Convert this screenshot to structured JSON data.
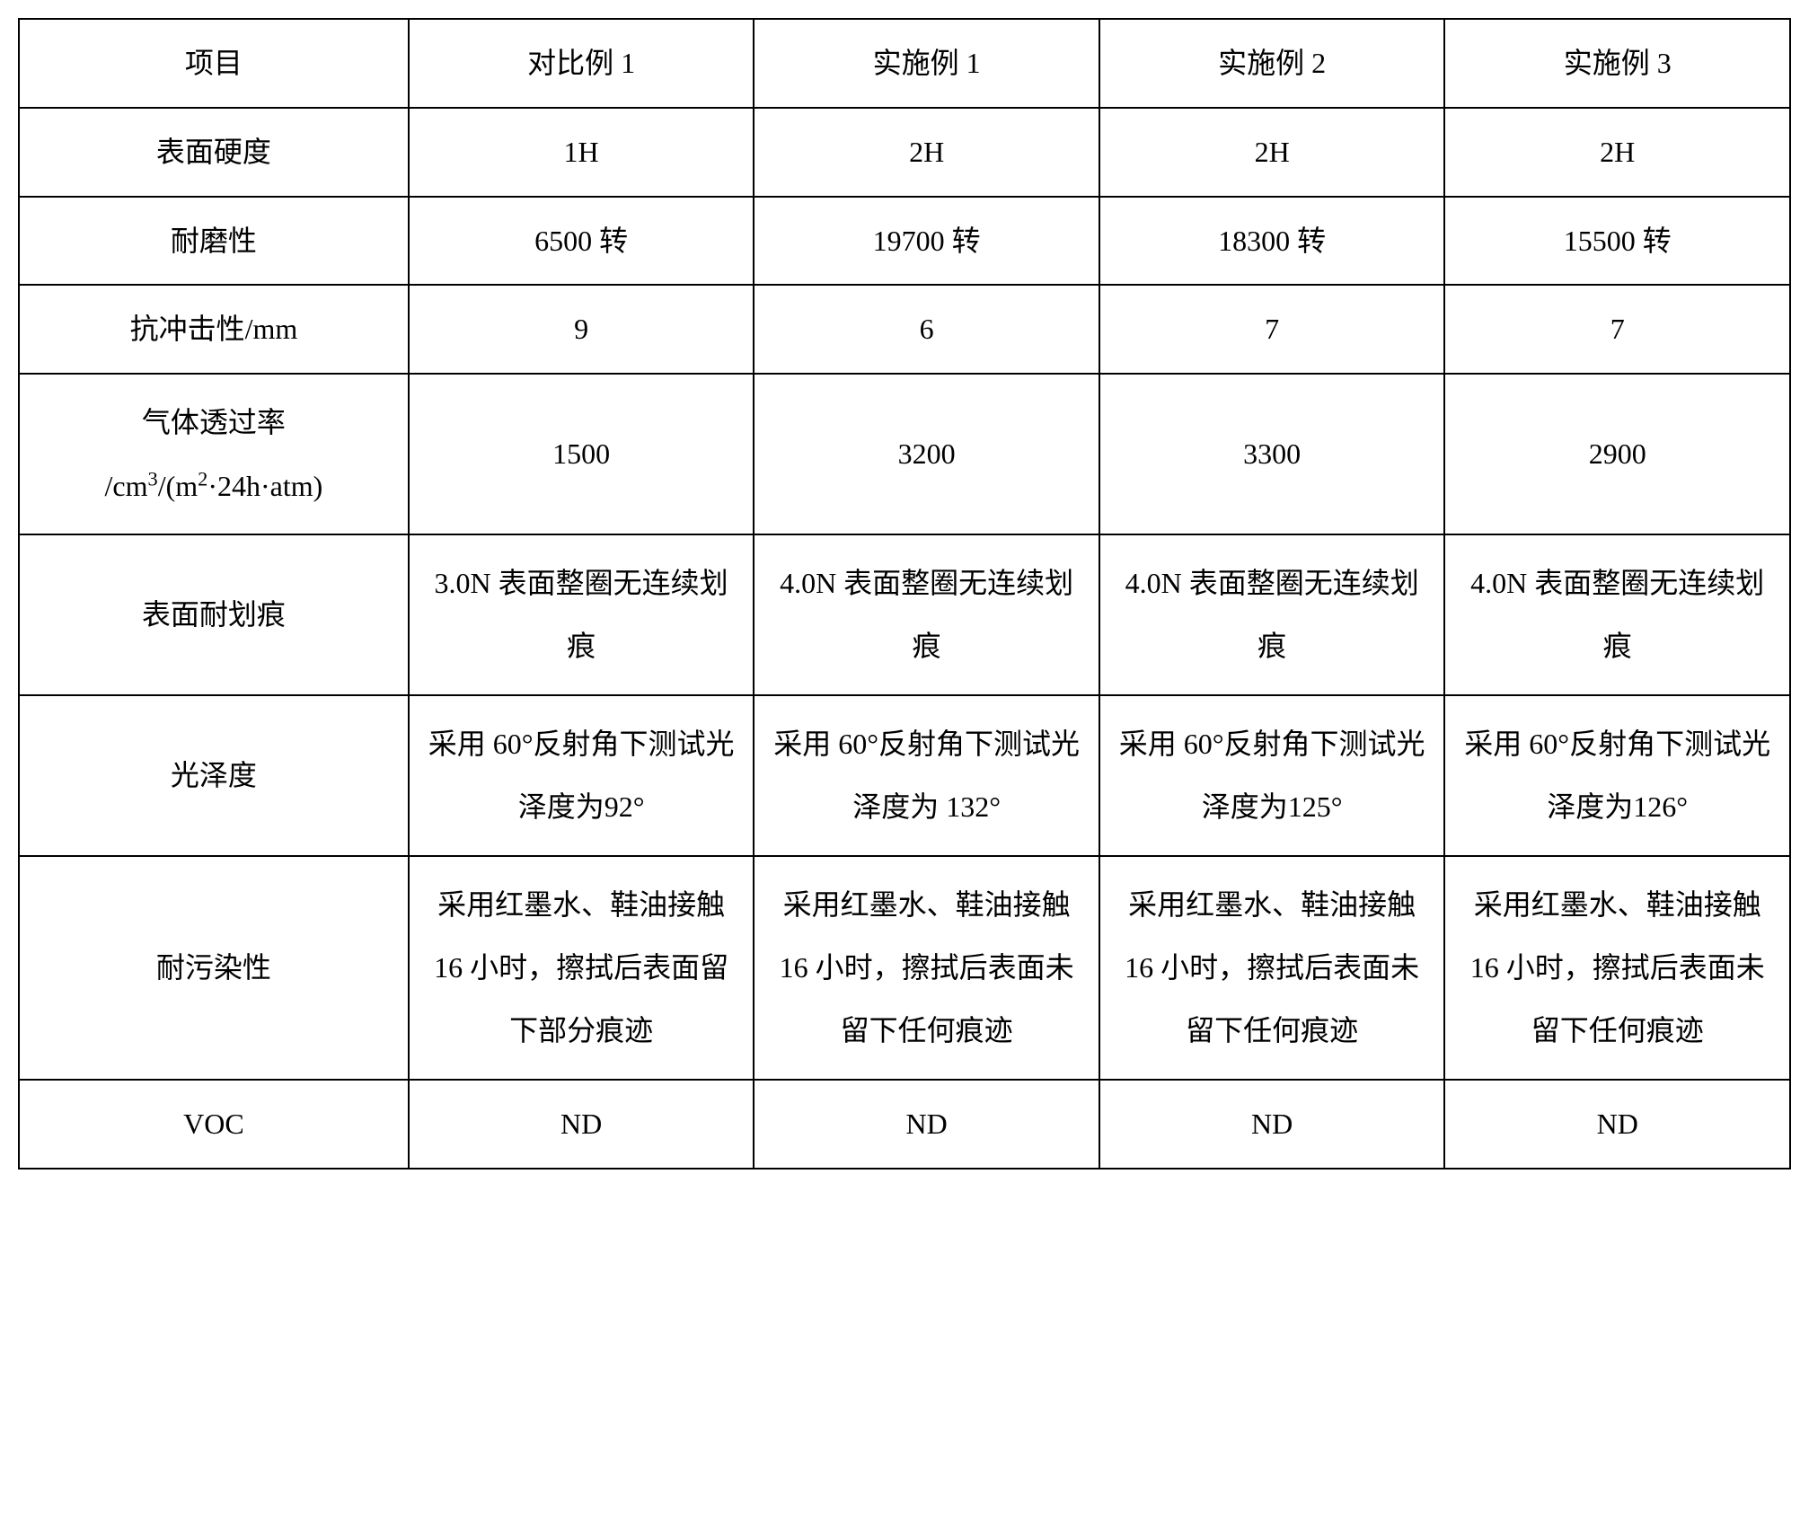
{
  "table": {
    "columns": [
      "项目",
      "对比例 1",
      "实施例 1",
      "实施例 2",
      "实施例 3"
    ],
    "column_widths": [
      "22%",
      "19.5%",
      "19.5%",
      "19.5%",
      "19.5%"
    ],
    "border_color": "#000000",
    "background_color": "#ffffff",
    "text_color": "#000000",
    "font_size": 32,
    "border_width": 2,
    "cell_align": "center",
    "rows": [
      {
        "header": "表面硬度",
        "cells": [
          "1H",
          "2H",
          "2H",
          "2H"
        ]
      },
      {
        "header": "耐磨性",
        "cells": [
          "6500 转",
          "19700 转",
          "18300 转",
          "15500 转"
        ]
      },
      {
        "header": "抗冲击性/mm",
        "cells": [
          "9",
          "6",
          "7",
          "7"
        ]
      },
      {
        "header_line1": "气体透过率",
        "header_line2_prefix": "/cm",
        "header_line2_sup": "3",
        "header_line2_mid": "/(m",
        "header_line2_sup2": "2",
        "header_line2_suffix": "·24h·atm)",
        "cells": [
          "1500",
          "3200",
          "3300",
          "2900"
        ]
      },
      {
        "header": "表面耐划痕",
        "cells": [
          "3.0N 表面整圈无连续划痕",
          "4.0N 表面整圈无连续划痕",
          "4.0N 表面整圈无连续划痕",
          "4.0N 表面整圈无连续划痕"
        ]
      },
      {
        "header": "光泽度",
        "cells": [
          "采用 60°反射角下测试光泽度为92°",
          "采用 60°反射角下测试光泽度为 132°",
          "采用 60°反射角下测试光泽度为125°",
          "采用 60°反射角下测试光泽度为126°"
        ]
      },
      {
        "header": "耐污染性",
        "cells": [
          "采用红墨水、鞋油接触 16 小时，擦拭后表面留下部分痕迹",
          "采用红墨水、鞋油接触 16 小时，擦拭后表面未留下任何痕迹",
          "采用红墨水、鞋油接触 16 小时，擦拭后表面未留下任何痕迹",
          "采用红墨水、鞋油接触 16 小时，擦拭后表面未留下任何痕迹"
        ]
      },
      {
        "header": "VOC",
        "cells": [
          "ND",
          "ND",
          "ND",
          "ND"
        ]
      }
    ]
  }
}
